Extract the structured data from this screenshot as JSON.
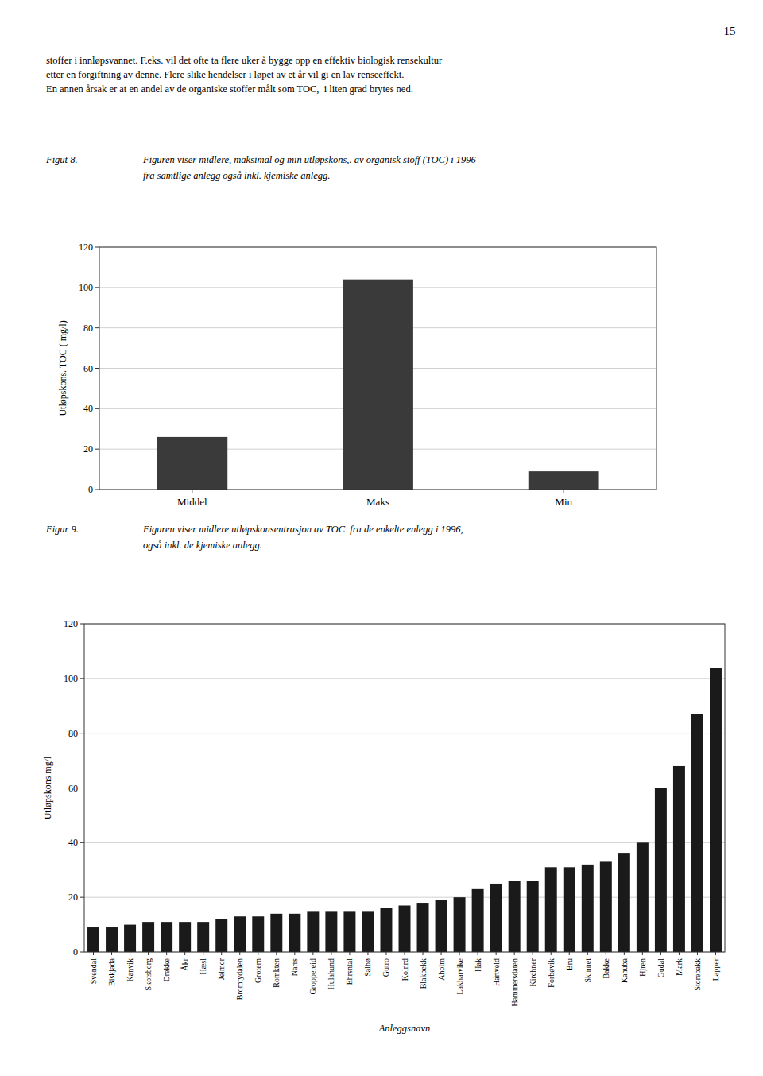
{
  "page_number": "15",
  "text_lines": [
    "stoffer i innløpsvannet. F.eks. vil det ofte ta flere uker å bygge opp en effektiv biologisk rensekultur",
    "etter en forgiftning av denne. Flere slike hendelser i løpet av et år vil gi en lav renseeffekt.",
    "En annen årsak er at en andel av de organiske stoffer målt som TOC,  i liten grad brytes ned."
  ],
  "chart_data": [
    {
      "type": "bar",
      "title": "Figut 8.",
      "subtitle": [
        "Figuren viser midlere, maksimal og min utløpskons,. av organisk stoff (TOC) i 1996",
        "fra samtlige anlegg også inkl. kjemiske anlegg."
      ],
      "categories": [
        "Middel",
        "Maks",
        "Min"
      ],
      "values": [
        26,
        104,
        9
      ],
      "color": "#3a3a3a",
      "ylabel": "Utløpskons. TOC ( mg/l)",
      "ylim": [
        0,
        120
      ],
      "yticks": [
        0,
        20,
        40,
        60,
        80,
        100,
        120
      ],
      "grid": true
    },
    {
      "type": "bar",
      "title": "Figur 9.",
      "subtitle": [
        "Figuren viser midlere utløpskonsentrasjon av TOC  fra de enkelte enlegg i 1996,",
        "også inkl. de kjemiske anlegg."
      ],
      "categories": [
        "Svendal",
        "Biskjada",
        "Kanvik",
        "Skotsborg",
        "Drekke",
        "Åkr",
        "Hæsl",
        "Jelmor",
        "Bromtydalen",
        "Grotern",
        "Romkten",
        "Narrs",
        "Groppereid",
        "Hulahund",
        "Ehrsntal",
        "Salbø",
        "Gutro",
        "Kolnrd",
        "Blakbekk",
        "Aholm",
        "Lakharvike",
        "Hak",
        "Hartveld",
        "Hammersdaten",
        "Kirchner",
        "Forbøvik",
        "Bru",
        "Skinnet",
        "Bakke",
        "Kanuba",
        "Hjren",
        "Gudal",
        "Mark",
        "Storebakk",
        "Lapper"
      ],
      "values": [
        9,
        9,
        10,
        11,
        11,
        11,
        11,
        12,
        13,
        13,
        14,
        14,
        15,
        15,
        15,
        15,
        16,
        17,
        18,
        19,
        20,
        23,
        25,
        26,
        26,
        31,
        31,
        32,
        33,
        36,
        40,
        60,
        68,
        87,
        104
      ],
      "color": "#1a1a1a",
      "ylabel": "Utløpskons mg/l",
      "xlabel": "Anleggsnavn",
      "ylim": [
        0,
        120
      ],
      "yticks": [
        0,
        20,
        40,
        60,
        80,
        100,
        120
      ],
      "grid": true
    }
  ]
}
